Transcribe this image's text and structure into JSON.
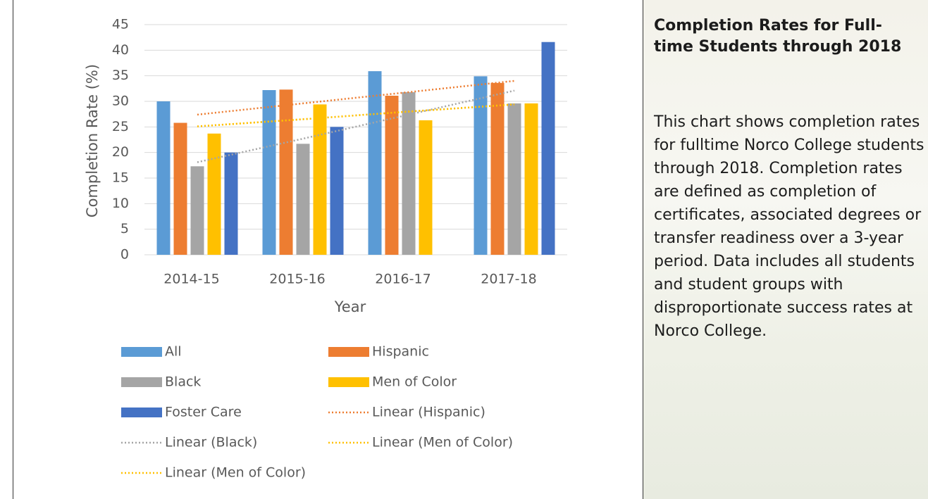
{
  "chart_data": {
    "type": "bar",
    "y_label": "Completion Rate (%)",
    "x_label": "Year",
    "categories": [
      "2014-15",
      "2015-16",
      "2016-17",
      "2017-18"
    ],
    "ylim": [
      0,
      45
    ],
    "yticks": [
      0,
      5,
      10,
      15,
      20,
      25,
      30,
      35,
      40,
      45
    ],
    "grid": true,
    "series": [
      {
        "name": "All",
        "color": "#5b9bd5",
        "values": [
          30,
          32.2,
          35.9,
          34.9
        ]
      },
      {
        "name": "Hispanic",
        "color": "#ed7d31",
        "values": [
          25.8,
          32.3,
          31.1,
          33.6
        ]
      },
      {
        "name": "Black",
        "color": "#a5a5a5",
        "values": [
          17.3,
          21.7,
          31.8,
          29.6
        ]
      },
      {
        "name": "Men of Color",
        "color": "#ffc000",
        "values": [
          23.7,
          29.4,
          26.3,
          29.6
        ]
      },
      {
        "name": "Foster Care",
        "color": "#4472c4",
        "values": [
          20,
          25,
          null,
          41.6
        ]
      }
    ],
    "trendlines": [
      {
        "name": "Linear (Hispanic)",
        "color": "#ed7d31",
        "values": [
          27.4,
          29.6,
          31.8,
          34.0
        ]
      },
      {
        "name": "Linear (Black)",
        "color": "#a5a5a5",
        "values": [
          18.1,
          22.7,
          27.4,
          32.1
        ]
      },
      {
        "name": "Linear (Men of Color)",
        "color": "#ffc000",
        "values": [
          25.1,
          26.5,
          28.0,
          29.4
        ]
      },
      {
        "name": "Linear (Men of Color)",
        "color": "#ffc000",
        "values": [
          25.1,
          26.5,
          28.0,
          29.4
        ]
      }
    ]
  },
  "side_panel": {
    "title": "Completion Rates for Full-time Students through 2018",
    "body": "This chart shows completion rates for fulltime Norco College students through 2018. Completion rates are defined as completion of certificates, associated degrees or transfer readiness over a 3-year period. Data includes all students and student groups with disproportionate success rates at Norco College."
  }
}
